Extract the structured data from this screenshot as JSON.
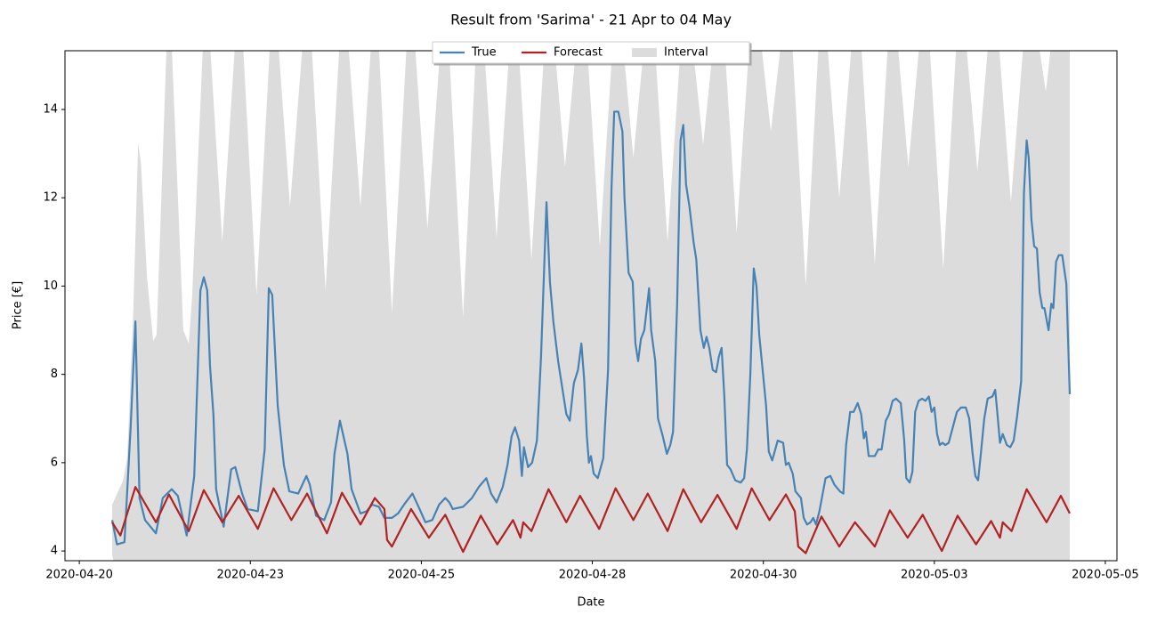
{
  "chart_data": {
    "type": "line",
    "title": "Result from 'Sarima' - 21 Apr to 04 May",
    "x_label": "Date",
    "y_label": "Price [€]",
    "xlim": [
      -0.21,
      15.17
    ],
    "ylim": [
      3.78,
      15.33
    ],
    "xticks": [
      {
        "value": 0,
        "label": "2020-04-20"
      },
      {
        "value": 2.5,
        "label": "2020-04-23"
      },
      {
        "value": 5,
        "label": "2020-04-25"
      },
      {
        "value": 7.5,
        "label": "2020-04-28"
      },
      {
        "value": 10,
        "label": "2020-04-30"
      },
      {
        "value": 12.5,
        "label": "2020-05-03"
      },
      {
        "value": 15,
        "label": "2020-05-05"
      }
    ],
    "yticks": [
      4,
      6,
      8,
      10,
      12,
      14
    ],
    "legend": "upper center",
    "series": [
      {
        "name": "True",
        "color": "#4682b4",
        "x": [
          0.48,
          0.55,
          0.66,
          0.75,
          0.82,
          0.88,
          0.96,
          1.12,
          1.22,
          1.35,
          1.44,
          1.57,
          1.68,
          1.77,
          1.82,
          1.87,
          1.91,
          1.96,
          2.0,
          2.11,
          2.22,
          2.28,
          2.38,
          2.46,
          2.61,
          2.71,
          2.77,
          2.82,
          2.9,
          2.99,
          3.07,
          3.2,
          3.32,
          3.37,
          3.46,
          3.58,
          3.68,
          3.73,
          3.81,
          3.92,
          3.98,
          4.11,
          4.2,
          4.28,
          4.38,
          4.46,
          4.57,
          4.66,
          4.77,
          4.87,
          4.96,
          5.06,
          5.16,
          5.26,
          5.35,
          5.41,
          5.46,
          5.61,
          5.74,
          5.84,
          5.95,
          6.02,
          6.1,
          6.19,
          6.26,
          6.32,
          6.37,
          6.43,
          6.47,
          6.5,
          6.56,
          6.62,
          6.69,
          6.75,
          6.83,
          6.88,
          6.93,
          7.0,
          7.06,
          7.12,
          7.17,
          7.23,
          7.29,
          7.34,
          7.38,
          7.42,
          7.45,
          7.48,
          7.52,
          7.58,
          7.66,
          7.73,
          7.78,
          7.82,
          7.88,
          7.94,
          7.97,
          8.03,
          8.09,
          8.13,
          8.17,
          8.21,
          8.26,
          8.33,
          8.36,
          8.42,
          8.46,
          8.53,
          8.59,
          8.64,
          8.68,
          8.74,
          8.79,
          8.83,
          8.87,
          8.92,
          8.98,
          9.02,
          9.08,
          9.13,
          9.17,
          9.21,
          9.26,
          9.31,
          9.35,
          9.39,
          9.43,
          9.47,
          9.52,
          9.59,
          9.67,
          9.72,
          9.76,
          9.81,
          9.86,
          9.9,
          9.94,
          9.99,
          10.04,
          10.08,
          10.13,
          10.21,
          10.29,
          10.33,
          10.37,
          10.43,
          10.47,
          10.55,
          10.59,
          10.64,
          10.69,
          10.73,
          10.77,
          10.82,
          10.91,
          10.98,
          11.04,
          11.12,
          11.17,
          11.21,
          11.27,
          11.32,
          11.38,
          11.43,
          11.47,
          11.5,
          11.54,
          11.63,
          11.68,
          11.73,
          11.79,
          11.84,
          11.89,
          11.94,
          12.01,
          12.06,
          12.09,
          12.14,
          12.18,
          12.22,
          12.27,
          12.32,
          12.37,
          12.42,
          12.46,
          12.5,
          12.54,
          12.58,
          12.62,
          12.66,
          12.71,
          12.77,
          12.83,
          12.89,
          12.96,
          13.01,
          13.06,
          13.1,
          13.14,
          13.18,
          13.23,
          13.28,
          13.35,
          13.39,
          13.42,
          13.46,
          13.5,
          13.56,
          13.61,
          13.66,
          13.71,
          13.77,
          13.81,
          13.85,
          13.88,
          13.92,
          13.96,
          14.0,
          14.04,
          14.08,
          14.11,
          14.17,
          14.21,
          14.24,
          14.28,
          14.32,
          14.37,
          14.43,
          14.48
        ],
        "values": [
          4.7,
          4.15,
          4.2,
          6.8,
          9.2,
          5.2,
          4.7,
          4.4,
          5.2,
          5.4,
          5.25,
          4.35,
          5.7,
          9.9,
          10.2,
          9.9,
          8.2,
          7.1,
          5.4,
          4.55,
          5.85,
          5.9,
          5.3,
          4.95,
          4.9,
          6.3,
          9.95,
          9.8,
          7.3,
          5.95,
          5.35,
          5.3,
          5.7,
          5.5,
          4.8,
          4.7,
          5.1,
          6.2,
          6.95,
          6.2,
          5.4,
          4.85,
          4.9,
          5.05,
          5.0,
          4.75,
          4.75,
          4.85,
          5.1,
          5.3,
          5.0,
          4.65,
          4.7,
          5.05,
          5.2,
          5.1,
          4.95,
          5.0,
          5.2,
          5.45,
          5.65,
          5.3,
          5.1,
          5.45,
          5.95,
          6.6,
          6.8,
          6.5,
          5.7,
          6.35,
          5.9,
          6.0,
          6.5,
          8.4,
          11.9,
          10.1,
          9.2,
          8.3,
          7.7,
          7.1,
          6.95,
          7.8,
          8.1,
          8.7,
          7.9,
          6.6,
          6.0,
          6.15,
          5.75,
          5.65,
          6.1,
          8.1,
          12.2,
          13.95,
          13.95,
          13.5,
          12.0,
          10.3,
          10.1,
          8.7,
          8.3,
          8.8,
          9.0,
          9.95,
          9.0,
          8.3,
          7.0,
          6.6,
          6.2,
          6.4,
          6.7,
          9.6,
          13.3,
          13.65,
          12.3,
          11.8,
          11.0,
          10.6,
          9.0,
          8.6,
          8.85,
          8.6,
          8.1,
          8.05,
          8.4,
          8.6,
          7.5,
          5.95,
          5.85,
          5.6,
          5.55,
          5.65,
          6.3,
          8.0,
          10.4,
          10.0,
          8.9,
          8.1,
          7.3,
          6.25,
          6.05,
          6.5,
          6.45,
          5.95,
          6.0,
          5.75,
          5.35,
          5.2,
          4.75,
          4.6,
          4.65,
          4.75,
          4.6,
          4.9,
          5.65,
          5.7,
          5.5,
          5.35,
          5.3,
          6.4,
          7.15,
          7.15,
          7.35,
          7.1,
          6.55,
          6.7,
          6.15,
          6.15,
          6.3,
          6.3,
          6.95,
          7.1,
          7.4,
          7.45,
          7.35,
          6.5,
          5.65,
          5.55,
          5.8,
          7.15,
          7.4,
          7.45,
          7.4,
          7.5,
          7.15,
          7.25,
          6.65,
          6.4,
          6.45,
          6.4,
          6.45,
          6.8,
          7.15,
          7.25,
          7.25,
          7.0,
          6.2,
          5.7,
          5.6,
          6.2,
          7.0,
          7.45,
          7.5,
          7.65,
          7.15,
          6.45,
          6.65,
          6.4,
          6.35,
          6.5,
          7.05,
          7.85,
          12.1,
          13.3,
          12.9,
          11.5,
          10.9,
          10.85,
          9.85,
          9.5,
          9.5,
          9.0,
          9.6,
          9.5,
          10.55,
          10.7,
          10.7,
          10.05,
          7.55
        ]
      },
      {
        "name": "Forecast",
        "color": "#b22222",
        "x": [
          0.48,
          0.6,
          0.82,
          1.12,
          1.31,
          1.6,
          1.82,
          2.09,
          2.33,
          2.61,
          2.84,
          3.1,
          3.33,
          3.62,
          3.84,
          4.11,
          4.32,
          4.46,
          4.5,
          4.57,
          4.85,
          5.11,
          5.35,
          5.61,
          5.87,
          6.11,
          6.34,
          6.45,
          6.49,
          6.61,
          6.86,
          7.12,
          7.32,
          7.6,
          7.84,
          8.1,
          8.31,
          8.6,
          8.83,
          9.09,
          9.33,
          9.61,
          9.83,
          10.09,
          10.33,
          10.46,
          10.51,
          10.62,
          10.85,
          11.11,
          11.34,
          11.63,
          11.85,
          12.11,
          12.33,
          12.61,
          12.84,
          13.11,
          13.33,
          13.46,
          13.5,
          13.63,
          13.85,
          14.14,
          14.35,
          14.48
        ],
        "values": [
          4.65,
          4.35,
          5.45,
          4.65,
          5.28,
          4.45,
          5.38,
          4.65,
          5.25,
          4.5,
          5.42,
          4.7,
          5.3,
          4.4,
          5.32,
          4.6,
          5.2,
          4.95,
          4.25,
          4.1,
          4.95,
          4.3,
          4.82,
          3.98,
          4.8,
          4.15,
          4.7,
          4.3,
          4.65,
          4.45,
          5.4,
          4.65,
          5.25,
          4.5,
          5.42,
          4.7,
          5.3,
          4.45,
          5.4,
          4.65,
          5.27,
          4.5,
          5.42,
          4.7,
          5.28,
          4.9,
          4.1,
          3.95,
          4.78,
          4.1,
          4.65,
          4.1,
          4.92,
          4.3,
          4.82,
          4.0,
          4.8,
          4.15,
          4.68,
          4.3,
          4.65,
          4.45,
          5.4,
          4.65,
          5.25,
          4.85
        ]
      },
      {
        "name": "Interval",
        "color": "#dcdcdc",
        "x": [
          0.48,
          0.64,
          0.7,
          0.79,
          0.86,
          0.9,
          0.99,
          1.08,
          1.13,
          1.31,
          1.52,
          1.6,
          1.65,
          1.85,
          2.09,
          2.34,
          2.59,
          2.84,
          3.08,
          3.34,
          3.6,
          3.86,
          4.11,
          4.33,
          4.57,
          4.84,
          5.09,
          5.35,
          5.61,
          5.85,
          6.1,
          6.36,
          6.61,
          6.86,
          7.1,
          7.36,
          7.61,
          7.86,
          8.1,
          8.35,
          8.6,
          8.86,
          9.12,
          9.37,
          9.61,
          9.86,
          10.11,
          10.37,
          10.62,
          10.86,
          11.11,
          11.37,
          11.63,
          11.88,
          12.12,
          12.37,
          12.63,
          12.88,
          13.13,
          13.37,
          13.62,
          13.88,
          14.13,
          14.32,
          14.48
        ],
        "upper": [
          5.05,
          5.6,
          6.1,
          9.5,
          13.25,
          12.8,
          10.2,
          8.75,
          8.9,
          17,
          9.0,
          8.7,
          9.8,
          17,
          11.0,
          17,
          9.8,
          17,
          11.8,
          17,
          9.9,
          17,
          11.8,
          17,
          9.4,
          17,
          11.3,
          17,
          9.3,
          17,
          11.1,
          17,
          10.6,
          17,
          12.7,
          17,
          10.9,
          17,
          12.9,
          17,
          11,
          17,
          13.2,
          17,
          11.2,
          17,
          13.5,
          17,
          10,
          17,
          12,
          17,
          10.5,
          17,
          12.7,
          17,
          10.4,
          17,
          12.6,
          17,
          11.9,
          17,
          14.4,
          17,
          17
        ],
        "lower": [
          3.9,
          3,
          3,
          3,
          3,
          3,
          3,
          3,
          3,
          3,
          3,
          3,
          3,
          3,
          3,
          3,
          3,
          3,
          3,
          3,
          3,
          3,
          3,
          3,
          3,
          3,
          3,
          3,
          3,
          3,
          3,
          3,
          3,
          3,
          3,
          3,
          3,
          3,
          3,
          3,
          3,
          3,
          3,
          3,
          3,
          3,
          3,
          3,
          3,
          3,
          3,
          3,
          3,
          3,
          3,
          3,
          3,
          3,
          3,
          3,
          3,
          3,
          3,
          3,
          3
        ]
      }
    ]
  }
}
